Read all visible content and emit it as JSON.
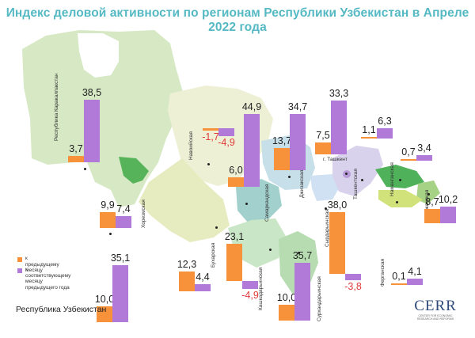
{
  "title": "Индекс деловой активности по регионам Республики Узбекистан в Апреле 2022 года",
  "legend": {
    "prev_label": "к предыдущему месяцу",
    "year_label": "к соответствующему месяцу\nпредыдущего года",
    "prev_color": "#f7923a",
    "year_color": "#b27ad8",
    "negative_color": "#e03a3a"
  },
  "national_label": "Республика Узбекистан",
  "logo": {
    "text": "CERR",
    "subtitle": "CENTER FOR ECONOMIC RESEARCH AND REFORMS"
  },
  "chart_data": {
    "type": "bar",
    "series": [
      {
        "name": "к предыдущему месяцу",
        "color": "#f7923a"
      },
      {
        "name": "к соответствующему месяцу предыдущего года",
        "color": "#b27ad8"
      }
    ],
    "regions": [
      {
        "name": "Республика Каракалпакстан",
        "prev": 3.7,
        "year": 38.5,
        "prev_text": "3,7",
        "year_text": "38,5"
      },
      {
        "name": "Хорезмская",
        "prev": 9.9,
        "year": 7.4,
        "prev_text": "9,9",
        "year_text": "7,4"
      },
      {
        "name": "Навоийская",
        "prev": -1.7,
        "year": -4.9,
        "prev_text": "-1,7",
        "year_text": "-4,9"
      },
      {
        "name": "Бухарская",
        "prev": 12.3,
        "year": 4.4,
        "prev_text": "12,3",
        "year_text": "4,4"
      },
      {
        "name": "Кашкадарьинская",
        "prev": 23.1,
        "year": -4.9,
        "prev_text": "23,1",
        "year_text": "-4,9"
      },
      {
        "name": "Самаркандская",
        "prev": 6.0,
        "year": 44.9,
        "prev_text": "6,0",
        "year_text": "44,9"
      },
      {
        "name": "Джизакская",
        "prev": 13.7,
        "year": 34.7,
        "prev_text": "13,7",
        "year_text": "34,7"
      },
      {
        "name": "Сурхандарьинская",
        "prev": 10.0,
        "year": 35.7,
        "prev_text": "10,0",
        "year_text": "35,7"
      },
      {
        "name": "Сырдарьинская",
        "prev": 38.0,
        "year": -3.8,
        "prev_text": "38,0",
        "year_text": "-3,8"
      },
      {
        "name": "г. Ташкент",
        "prev": 7.5,
        "year": 33.3,
        "prev_text": "7,5",
        "year_text": "33,3"
      },
      {
        "name": "Ташкентская",
        "prev": 1.1,
        "year": 6.3,
        "prev_text": "1,1",
        "year_text": "6,3"
      },
      {
        "name": "Наманганская",
        "prev": 0.7,
        "year": 3.4,
        "prev_text": "0,7",
        "year_text": "3,4"
      },
      {
        "name": "Андижанская",
        "prev": 8.7,
        "year": 10.2,
        "prev_text": "8,7",
        "year_text": "10,2"
      },
      {
        "name": "Ферганская",
        "prev": 0.1,
        "year": 4.1,
        "prev_text": "0,1",
        "year_text": "4,1"
      },
      {
        "name": "Республика Узбекистан",
        "prev": 10.0,
        "year": 35.1,
        "prev_text": "10,0",
        "year_text": "35,1"
      }
    ]
  }
}
